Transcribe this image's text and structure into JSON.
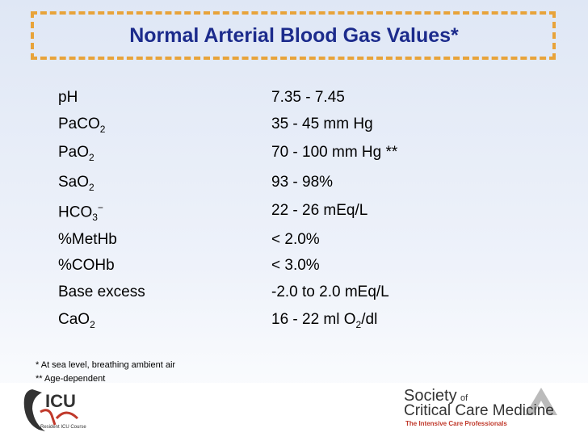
{
  "header": {
    "title": "Normal Arterial Blood Gas Values*"
  },
  "table": {
    "rows": [
      {
        "label": [
          {
            "t": "pH"
          }
        ],
        "value": [
          {
            "t": "7.35 - 7.45"
          }
        ]
      },
      {
        "label": [
          {
            "t": "PaCO"
          },
          {
            "sub": "2"
          }
        ],
        "value": [
          {
            "t": "35 - 45 mm Hg"
          }
        ]
      },
      {
        "label": [
          {
            "t": "PaO"
          },
          {
            "sub": "2"
          }
        ],
        "value": [
          {
            "t": "70 - 100 mm Hg **"
          }
        ]
      },
      {
        "label": [
          {
            "t": "SaO"
          },
          {
            "sub": "2"
          }
        ],
        "value": [
          {
            "t": "93 - 98%"
          }
        ]
      },
      {
        "label": [
          {
            "t": "HCO"
          },
          {
            "sub": "3"
          },
          {
            "sup": "−"
          }
        ],
        "value": [
          {
            "t": "22 - 26 mEq/L"
          }
        ]
      },
      {
        "label": [
          {
            "t": "%MetHb"
          }
        ],
        "value": [
          {
            "t": "< 2.0%"
          }
        ]
      },
      {
        "label": [
          {
            "t": "%COHb"
          }
        ],
        "value": [
          {
            "t": "< 3.0%"
          }
        ]
      },
      {
        "label": [
          {
            "t": "Base excess"
          }
        ],
        "value": [
          {
            "t": "-2.0 to 2.0 mEq/L"
          }
        ]
      },
      {
        "label": [
          {
            "t": "CaO"
          },
          {
            "sub": "2"
          }
        ],
        "value": [
          {
            "t": "16 - 22 ml O"
          },
          {
            "sub": "2"
          },
          {
            "t": "/dl"
          }
        ]
      }
    ]
  },
  "footnotes": [
    "* At sea level, breathing ambient air",
    "** Age-dependent"
  ],
  "logos": {
    "left": {
      "mark": "ICU",
      "caption": "Resident ICU Course"
    },
    "right": {
      "name": "Society",
      "of": "of",
      "line2": "Critical Care Medicine",
      "tagline": "The Intensive Care Professionals"
    }
  }
}
